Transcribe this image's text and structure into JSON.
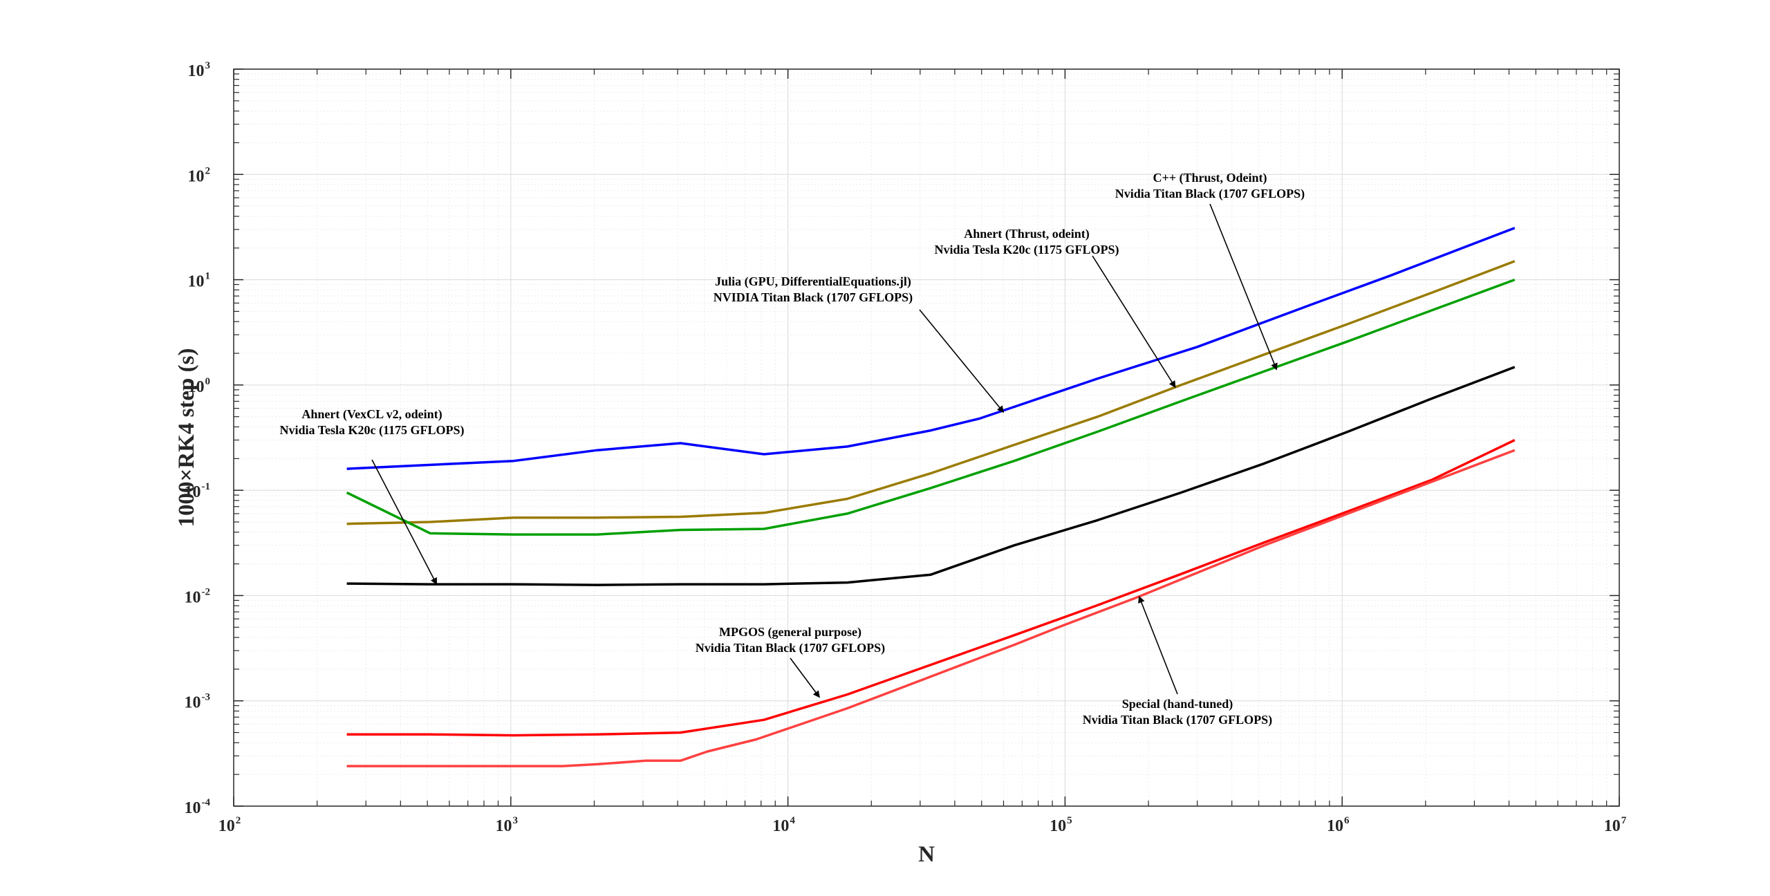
{
  "chart_data": {
    "type": "line",
    "xscale": "log",
    "yscale": "log",
    "xlim": [
      100,
      10000000
    ],
    "ylim": [
      0.0001,
      1000
    ],
    "grid": true,
    "xlabel": "N",
    "ylabel": "1000×RK4 step (s)",
    "xticks": [
      {
        "value": 100,
        "base": "10",
        "exp": "2"
      },
      {
        "value": 1000,
        "base": "10",
        "exp": "3"
      },
      {
        "value": 10000,
        "base": "10",
        "exp": "4"
      },
      {
        "value": 100000,
        "base": "10",
        "exp": "5"
      },
      {
        "value": 1000000,
        "base": "10",
        "exp": "6"
      },
      {
        "value": 10000000,
        "base": "10",
        "exp": "7"
      }
    ],
    "yticks": [
      {
        "value": 0.0001,
        "base": "10",
        "exp": "-4"
      },
      {
        "value": 0.001,
        "base": "10",
        "exp": "-3"
      },
      {
        "value": 0.01,
        "base": "10",
        "exp": "-2"
      },
      {
        "value": 0.1,
        "base": "10",
        "exp": "-1"
      },
      {
        "value": 1,
        "base": "10",
        "exp": "0"
      },
      {
        "value": 10,
        "base": "10",
        "exp": "1"
      },
      {
        "value": 100,
        "base": "10",
        "exp": "2"
      },
      {
        "value": 1000,
        "base": "10",
        "exp": "3"
      }
    ],
    "series": [
      {
        "color": "#0000ff",
        "x": [
          256,
          1024,
          2048,
          4096,
          8192,
          16384,
          32768,
          49152,
          65536,
          131072,
          300000,
          800000,
          1500000,
          4194304
        ],
        "y": [
          0.16,
          0.19,
          0.24,
          0.28,
          0.22,
          0.26,
          0.37,
          0.48,
          0.62,
          1.15,
          2.3,
          6.0,
          11.0,
          31.0
        ]
      },
      {
        "color": "#9a7b00",
        "x": [
          256,
          512,
          1024,
          2048,
          4096,
          8192,
          16384,
          32768,
          65536,
          131072,
          262144,
          524288,
          1048576,
          2097152,
          4194304
        ],
        "y": [
          0.048,
          0.05,
          0.055,
          0.055,
          0.056,
          0.061,
          0.083,
          0.145,
          0.27,
          0.5,
          1.0,
          1.95,
          3.8,
          7.5,
          15.0
        ]
      },
      {
        "color": "#00a000",
        "x": [
          256,
          512,
          1024,
          2048,
          4096,
          8192,
          16384,
          32768,
          65536,
          131072,
          262144,
          524288,
          1048576,
          2097152,
          4194304
        ],
        "y": [
          0.095,
          0.039,
          0.038,
          0.038,
          0.042,
          0.043,
          0.06,
          0.105,
          0.19,
          0.36,
          0.7,
          1.35,
          2.6,
          5.1,
          10.0
        ]
      },
      {
        "color": "#000000",
        "x": [
          256,
          512,
          1024,
          2048,
          4096,
          8192,
          16384,
          32768,
          65536,
          131072,
          262144,
          524288,
          1048576,
          2097152,
          4194304
        ],
        "y": [
          0.013,
          0.0128,
          0.0128,
          0.0126,
          0.0128,
          0.0128,
          0.0133,
          0.0158,
          0.03,
          0.052,
          0.095,
          0.18,
          0.36,
          0.74,
          1.48
        ]
      },
      {
        "color": "#ff0000",
        "x": [
          256,
          512,
          1024,
          2048,
          4096,
          8192,
          16384,
          32768,
          65536,
          131072,
          262144,
          524288,
          1048576,
          2097152,
          4194304
        ],
        "y": [
          0.00048,
          0.00048,
          0.00047,
          0.00048,
          0.0005,
          0.00066,
          0.00115,
          0.0022,
          0.0042,
          0.0081,
          0.016,
          0.032,
          0.063,
          0.125,
          0.3
        ]
      },
      {
        "color": "#ff4040",
        "x": [
          256,
          512,
          1024,
          1536,
          2048,
          3072,
          4096,
          5120,
          7680,
          16384,
          32768,
          65536,
          98304,
          180000,
          524288,
          1048576,
          2097152,
          4194304
        ],
        "y": [
          0.00024,
          0.00024,
          0.00024,
          0.00024,
          0.00025,
          0.00027,
          0.00027,
          0.00033,
          0.00043,
          0.00085,
          0.0017,
          0.0034,
          0.0052,
          0.0095,
          0.03,
          0.06,
          0.12,
          0.24
        ]
      }
    ],
    "annotations": [
      {
        "lines": [
          "C++ (Thrust, Odeint)",
          "Nvidia Titan Black (1707 GFLOPS)"
        ],
        "arrow_to": {
          "x": 580000,
          "y": 1.4
        }
      },
      {
        "lines": [
          "Ahnert (Thrust, odeint)",
          "Nvidia Tesla K20c (1175 GFLOPS)"
        ],
        "arrow_to": {
          "x": 250000,
          "y": 0.95
        }
      },
      {
        "lines": [
          "Julia (GPU, DifferentialEquations.jl)",
          "NVIDIA Titan Black (1707 GFLOPS)"
        ],
        "arrow_to": {
          "x": 60000,
          "y": 0.55
        }
      },
      {
        "lines": [
          "Ahnert (VexCL v2, odeint)",
          "Nvidia Tesla K20c (1175 GFLOPS)"
        ],
        "arrow_to": {
          "x": 540,
          "y": 0.0128
        }
      },
      {
        "lines": [
          "MPGOS (general purpose)",
          "Nvidia Titan Black (1707 GFLOPS)"
        ],
        "arrow_to": {
          "x": 13000,
          "y": 0.00108
        }
      },
      {
        "lines": [
          "Special (hand-tuned)",
          "Nvidia Titan Black (1707 GFLOPS)"
        ],
        "arrow_to": {
          "x": 185000,
          "y": 0.0098
        }
      }
    ]
  }
}
